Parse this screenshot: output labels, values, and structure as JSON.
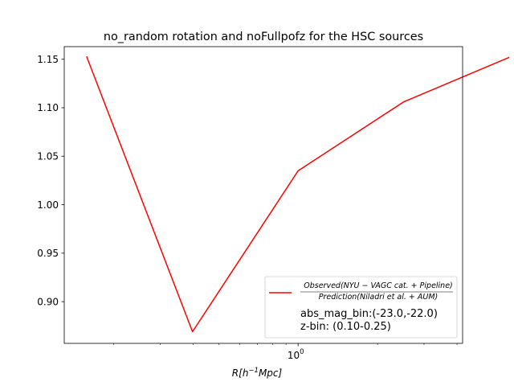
{
  "chart_data": {
    "type": "line",
    "title": "no_random rotation and noFullpofz for the HSC sources",
    "xlabel": "R[h⁻¹Mpc]",
    "xlabel_parts": {
      "base": "R[h",
      "sup": "−1",
      "tail": "Mpc]"
    },
    "ylabel": "",
    "xscale": "log",
    "xlim": [
      0.13,
      4.2
    ],
    "ylim": [
      0.857,
      1.163
    ],
    "x_major_ticks": [
      {
        "value": 1.0,
        "base": "10",
        "exp": "0"
      }
    ],
    "x_minor_ticks": [
      0.2,
      0.3,
      0.4,
      0.5,
      0.6,
      0.7,
      0.8,
      0.9,
      2,
      3,
      4
    ],
    "y_ticks": [
      0.9,
      0.95,
      1.0,
      1.05,
      1.1,
      1.15
    ],
    "y_tick_labels": [
      "0.90",
      "0.95",
      "1.00",
      "1.05",
      "1.10",
      "1.15"
    ],
    "grid": false,
    "legend_position": "lower right",
    "series": [
      {
        "name": "Observed(NYU − VAGC cat. + Pipeline) / Prediction(Niladri et al. + AUM)",
        "name_numerator": "Observed(NYU − VAGC cat. + Pipeline)",
        "name_denominator": "Prediction(Niladri et al. + AUM)",
        "color": "#ff0000",
        "x": [
          0.158,
          0.398,
          1.0,
          2.512,
          6.31
        ],
        "y": [
          1.153,
          0.869,
          1.035,
          1.106,
          1.152
        ]
      }
    ],
    "legend_extra": [
      "abs_mag_bin:(-23.0,-22.0)",
      "z-bin: (0.10-0.25)"
    ]
  }
}
